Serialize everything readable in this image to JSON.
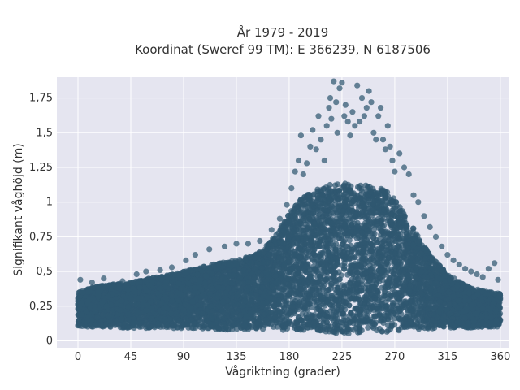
{
  "chart_data": {
    "type": "scatter",
    "title_line1": "År 1979 - 2019",
    "title_line2": "Koordinat (Sweref 99 TM): E 366239, N 6187506",
    "xlabel": "Vågriktning (grader)",
    "ylabel": "Signifikant våghöjd (m)",
    "xlim": [
      -18,
      367
    ],
    "ylim": [
      -0.05,
      1.9
    ],
    "x_ticks": [
      0,
      45,
      90,
      135,
      180,
      225,
      270,
      315,
      360
    ],
    "x_tick_labels": [
      "0",
      "45",
      "90",
      "135",
      "180",
      "225",
      "270",
      "315",
      "360"
    ],
    "y_ticks": [
      0,
      0.25,
      0.5,
      0.75,
      1,
      1.25,
      1.5,
      1.75
    ],
    "y_tick_labels": [
      "0",
      "0,25",
      "0,5",
      "0,75",
      "1",
      "1,25",
      "1,5",
      "1,75"
    ],
    "grid": true,
    "marker_color": "#2f5870",
    "plot_background": "#e5e5f0",
    "envelope": {
      "x": [
        0,
        10,
        20,
        30,
        45,
        60,
        75,
        90,
        105,
        120,
        135,
        150,
        160,
        170,
        180,
        190,
        200,
        210,
        225,
        240,
        250,
        260,
        270,
        280,
        290,
        300,
        315,
        330,
        345,
        360
      ],
      "y_min": [
        0.1,
        0.1,
        0.1,
        0.1,
        0.09,
        0.09,
        0.09,
        0.09,
        0.09,
        0.08,
        0.08,
        0.08,
        0.08,
        0.08,
        0.07,
        0.07,
        0.06,
        0.06,
        0.05,
        0.05,
        0.06,
        0.06,
        0.07,
        0.08,
        0.08,
        0.09,
        0.09,
        0.09,
        0.1,
        0.1
      ],
      "y_max": [
        0.35,
        0.38,
        0.4,
        0.41,
        0.42,
        0.45,
        0.47,
        0.5,
        0.53,
        0.56,
        0.58,
        0.62,
        0.68,
        0.78,
        0.92,
        1.02,
        1.08,
        1.12,
        1.14,
        1.12,
        1.12,
        1.1,
        1.02,
        0.9,
        0.75,
        0.62,
        0.48,
        0.4,
        0.36,
        0.34
      ]
    },
    "outliers": [
      [
        2,
        0.44
      ],
      [
        12,
        0.42
      ],
      [
        22,
        0.45
      ],
      [
        38,
        0.43
      ],
      [
        50,
        0.48
      ],
      [
        58,
        0.5
      ],
      [
        70,
        0.51
      ],
      [
        80,
        0.53
      ],
      [
        92,
        0.58
      ],
      [
        100,
        0.62
      ],
      [
        112,
        0.66
      ],
      [
        125,
        0.68
      ],
      [
        135,
        0.7
      ],
      [
        145,
        0.7
      ],
      [
        155,
        0.72
      ],
      [
        165,
        0.8
      ],
      [
        172,
        0.88
      ],
      [
        178,
        0.98
      ],
      [
        182,
        1.1
      ],
      [
        185,
        1.22
      ],
      [
        188,
        1.3
      ],
      [
        190,
        1.48
      ],
      [
        192,
        1.2
      ],
      [
        195,
        1.28
      ],
      [
        198,
        1.4
      ],
      [
        200,
        1.52
      ],
      [
        203,
        1.38
      ],
      [
        205,
        1.62
      ],
      [
        207,
        1.45
      ],
      [
        210,
        1.3
      ],
      [
        212,
        1.55
      ],
      [
        214,
        1.68
      ],
      [
        215,
        1.75
      ],
      [
        216,
        1.6
      ],
      [
        218,
        1.87
      ],
      [
        220,
        1.72
      ],
      [
        221,
        1.5
      ],
      [
        223,
        1.82
      ],
      [
        225,
        1.86
      ],
      [
        227,
        1.62
      ],
      [
        228,
        1.7
      ],
      [
        230,
        1.58
      ],
      [
        232,
        1.48
      ],
      [
        234,
        1.65
      ],
      [
        236,
        1.55
      ],
      [
        238,
        1.84
      ],
      [
        240,
        1.58
      ],
      [
        242,
        1.75
      ],
      [
        244,
        1.62
      ],
      [
        246,
        1.68
      ],
      [
        248,
        1.8
      ],
      [
        250,
        1.72
      ],
      [
        252,
        1.5
      ],
      [
        254,
        1.45
      ],
      [
        256,
        1.62
      ],
      [
        258,
        1.68
      ],
      [
        260,
        1.45
      ],
      [
        262,
        1.38
      ],
      [
        264,
        1.55
      ],
      [
        266,
        1.4
      ],
      [
        268,
        1.3
      ],
      [
        270,
        1.22
      ],
      [
        274,
        1.35
      ],
      [
        278,
        1.25
      ],
      [
        282,
        1.2
      ],
      [
        286,
        1.05
      ],
      [
        290,
        1.0
      ],
      [
        295,
        0.9
      ],
      [
        300,
        0.82
      ],
      [
        305,
        0.75
      ],
      [
        310,
        0.68
      ],
      [
        315,
        0.62
      ],
      [
        320,
        0.58
      ],
      [
        325,
        0.55
      ],
      [
        330,
        0.52
      ],
      [
        335,
        0.5
      ],
      [
        340,
        0.48
      ],
      [
        345,
        0.46
      ],
      [
        350,
        0.52
      ],
      [
        355,
        0.56
      ],
      [
        358,
        0.44
      ]
    ]
  }
}
